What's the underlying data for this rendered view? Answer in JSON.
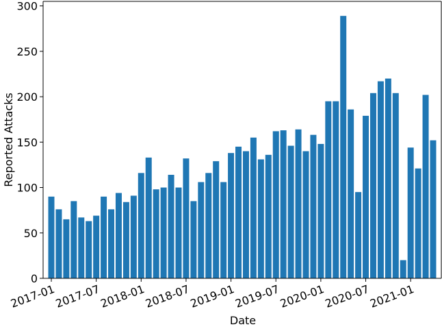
{
  "chart_data": {
    "type": "bar",
    "xlabel": "Date",
    "ylabel": "Reported Attacks",
    "categories": [
      "2017-01",
      null,
      null,
      null,
      null,
      null,
      "2017-07",
      null,
      null,
      null,
      null,
      null,
      "2018-01",
      null,
      null,
      null,
      null,
      null,
      "2018-07",
      null,
      null,
      null,
      null,
      null,
      "2019-01",
      null,
      null,
      null,
      null,
      null,
      "2019-07",
      null,
      null,
      null,
      null,
      null,
      "2020-01",
      null,
      null,
      null,
      null,
      null,
      "2020-07",
      null,
      null,
      null,
      null,
      null,
      "2021-01",
      null,
      null,
      null
    ],
    "values": [
      90,
      76,
      65,
      85,
      67,
      63,
      69,
      90,
      76,
      94,
      84,
      91,
      116,
      133,
      98,
      100,
      114,
      100,
      132,
      85,
      106,
      116,
      129,
      106,
      138,
      145,
      140,
      155,
      131,
      136,
      162,
      163,
      146,
      164,
      140,
      158,
      148,
      195,
      195,
      289,
      186,
      95,
      179,
      204,
      217,
      220,
      204,
      20,
      144,
      121,
      202,
      152
    ],
    "color": "#1f77b4",
    "ylim": [
      0,
      305
    ],
    "yticks": [
      0,
      50,
      100,
      150,
      200,
      250,
      300
    ]
  }
}
